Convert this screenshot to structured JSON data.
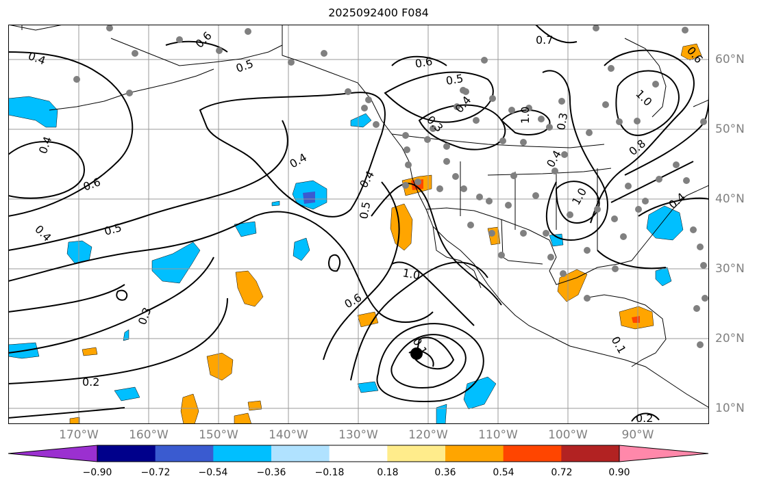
{
  "title": "2025092400 F084",
  "lon_labels": [
    "170°W",
    "160°W",
    "150°W",
    "140°W",
    "130°W",
    "120°W",
    "110°W",
    "100°W",
    "90°W"
  ],
  "lat_labels": [
    "60°N",
    "50°N",
    "40°N",
    "30°N",
    "20°N",
    "10°N"
  ],
  "colorbar": {
    "ticks": [
      "−0.90",
      "−0.72",
      "−0.54",
      "−0.36",
      "−0.18",
      "0.18",
      "0.36",
      "0.54",
      "0.72",
      "0.90"
    ],
    "colors": [
      "#9b30d0",
      "#00008b",
      "#3a5bd0",
      "#00bfff",
      "#b0e2ff",
      "#ffffff",
      "#ffec8b",
      "#ffa500",
      "#ff4500",
      "#b22222",
      "#ff88aa"
    ]
  },
  "colors": {
    "land_line": "#000000",
    "grid": "#999999",
    "dot": "#808080",
    "negative_fill": "#00bfff",
    "positive_fill": "#ffa500",
    "strong_negative": "#3a5bd0",
    "strong_positive": "#ff4500"
  },
  "contour_labels": [
    "0.4",
    "0.6",
    "0.5",
    "0.4",
    "0.6",
    "0.5",
    "0.4",
    "0.3",
    "0.2",
    "0.4",
    "0.5",
    "0.4",
    "1.0",
    "0.6",
    "0.1",
    "0.6",
    "0.5",
    "0.4",
    "0.3",
    "0.7",
    "1.0",
    "1.0",
    "0.8",
    "0.4",
    "1.0",
    "0.3",
    "0.4",
    "0.2",
    "0.6",
    "0.1"
  ]
}
